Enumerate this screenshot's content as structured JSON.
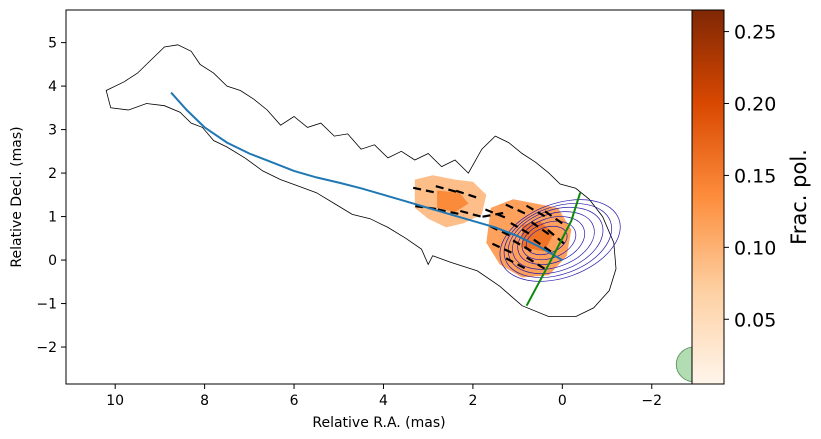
{
  "chart_data": {
    "type": "contour-map",
    "xlabel": "Relative R.A. (mas)",
    "ylabel": "Relative Decl. (mas)",
    "xlim": [
      11.1,
      -2.9
    ],
    "ylim": [
      -2.85,
      5.75
    ],
    "x_ticks": [
      10,
      8,
      6,
      4,
      2,
      0,
      -2
    ],
    "x_tick_labels": [
      "10",
      "8",
      "6",
      "4",
      "2",
      "0",
      "−2"
    ],
    "y_ticks": [
      5,
      4,
      3,
      2,
      1,
      0,
      -1,
      -2
    ],
    "y_tick_labels": [
      "5",
      "4",
      "3",
      "2",
      "1",
      "0",
      "−1",
      "−2"
    ],
    "colorbar": {
      "label": "Frac. pol.",
      "range": [
        0.005,
        0.265
      ],
      "ticks": [
        0.25,
        0.2,
        0.15,
        0.1,
        0.05
      ],
      "tick_labels": [
        "0.25",
        "0.20",
        "0.15",
        "0.10",
        "0.05"
      ],
      "colormap": [
        "#fff5eb",
        "#fdd0a2",
        "#fd8d3c",
        "#d94801",
        "#7f2704"
      ]
    },
    "outer_contour": [
      [
        10.1,
        3.5
      ],
      [
        10.2,
        3.9
      ],
      [
        9.8,
        4.1
      ],
      [
        9.5,
        4.3
      ],
      [
        9.2,
        4.6
      ],
      [
        8.9,
        4.9
      ],
      [
        8.6,
        4.95
      ],
      [
        8.3,
        4.8
      ],
      [
        8.1,
        4.5
      ],
      [
        7.8,
        4.3
      ],
      [
        7.5,
        4.0
      ],
      [
        7.2,
        3.9
      ],
      [
        6.9,
        3.7
      ],
      [
        6.6,
        3.45
      ],
      [
        6.3,
        3.1
      ],
      [
        6.0,
        3.3
      ],
      [
        5.7,
        3.05
      ],
      [
        5.4,
        3.15
      ],
      [
        5.1,
        2.85
      ],
      [
        4.8,
        2.9
      ],
      [
        4.5,
        2.55
      ],
      [
        4.2,
        2.65
      ],
      [
        3.9,
        2.35
      ],
      [
        3.6,
        2.5
      ],
      [
        3.3,
        2.3
      ],
      [
        3.0,
        2.45
      ],
      [
        2.7,
        2.15
      ],
      [
        2.4,
        2.3
      ],
      [
        2.1,
        2.0
      ],
      [
        1.8,
        2.55
      ],
      [
        1.5,
        2.85
      ],
      [
        1.2,
        2.7
      ],
      [
        0.9,
        2.45
      ],
      [
        0.6,
        2.25
      ],
      [
        0.3,
        2.0
      ],
      [
        0.05,
        1.75
      ],
      [
        -0.3,
        1.65
      ],
      [
        -0.6,
        1.4
      ],
      [
        -0.9,
        1.0
      ],
      [
        -1.15,
        0.4
      ],
      [
        -1.2,
        -0.2
      ],
      [
        -1.05,
        -0.7
      ],
      [
        -0.7,
        -1.1
      ],
      [
        -0.3,
        -1.3
      ],
      [
        0.3,
        -1.3
      ],
      [
        0.9,
        -1.05
      ],
      [
        1.4,
        -0.6
      ],
      [
        1.9,
        -0.25
      ],
      [
        2.5,
        -0.05
      ],
      [
        2.9,
        0.1
      ],
      [
        3.0,
        -0.1
      ],
      [
        3.15,
        0.25
      ],
      [
        3.5,
        0.5
      ],
      [
        3.9,
        0.75
      ],
      [
        4.3,
        0.95
      ],
      [
        4.7,
        1.05
      ],
      [
        5.1,
        1.3
      ],
      [
        5.5,
        1.55
      ],
      [
        5.9,
        1.7
      ],
      [
        6.3,
        1.85
      ],
      [
        6.7,
        2.05
      ],
      [
        7.1,
        2.35
      ],
      [
        7.5,
        2.6
      ],
      [
        7.8,
        2.75
      ],
      [
        8.05,
        3.05
      ],
      [
        8.3,
        3.15
      ],
      [
        8.55,
        3.4
      ],
      [
        8.9,
        3.55
      ],
      [
        9.3,
        3.6
      ],
      [
        9.7,
        3.45
      ],
      [
        10.1,
        3.5
      ]
    ],
    "core_contour_levels": [
      {
        "cx": 0.35,
        "cy": 0.45,
        "rx": 0.95,
        "ry": 0.6
      },
      {
        "cx": 0.3,
        "cy": 0.45,
        "rx": 1.25,
        "ry": 0.82
      },
      {
        "cx": 0.25,
        "cy": 0.45,
        "rx": 1.55,
        "ry": 1.02
      },
      {
        "cx": 0.2,
        "cy": 0.45,
        "rx": 1.9,
        "ry": 1.22
      },
      {
        "cx": 0.15,
        "cy": 0.45,
        "rx": 2.2,
        "ry": 1.4
      },
      {
        "cx": 0.1,
        "cy": 0.45,
        "rx": 2.5,
        "ry": 1.55
      },
      {
        "cx": 0.05,
        "cy": 0.45,
        "rx": 2.8,
        "ry": 1.7
      }
    ],
    "frac_pol_regions": [
      {
        "points": [
          [
            3.3,
            1.85
          ],
          [
            2.9,
            1.95
          ],
          [
            2.4,
            1.85
          ],
          [
            2.0,
            1.8
          ],
          [
            1.7,
            1.5
          ],
          [
            1.8,
            1.05
          ],
          [
            2.2,
            0.85
          ],
          [
            2.6,
            0.75
          ],
          [
            3.0,
            0.95
          ],
          [
            3.3,
            1.2
          ]
        ],
        "value": 0.09
      },
      {
        "points": [
          [
            1.6,
            1.2
          ],
          [
            1.1,
            1.4
          ],
          [
            0.6,
            1.3
          ],
          [
            0.1,
            1.2
          ],
          [
            -0.2,
            0.7
          ],
          [
            -0.1,
            0.1
          ],
          [
            0.3,
            -0.35
          ],
          [
            0.9,
            -0.4
          ],
          [
            1.4,
            -0.1
          ],
          [
            1.7,
            0.4
          ]
        ],
        "value": 0.12
      },
      {
        "points": [
          [
            2.8,
            1.6
          ],
          [
            2.3,
            1.55
          ],
          [
            2.1,
            1.3
          ],
          [
            2.4,
            1.1
          ],
          [
            2.8,
            1.2
          ]
        ],
        "value": 0.14
      },
      {
        "points": [
          [
            0.9,
            0.8
          ],
          [
            0.5,
            0.9
          ],
          [
            0.2,
            0.6
          ],
          [
            0.4,
            0.2
          ],
          [
            0.9,
            0.3
          ]
        ],
        "value": 0.16
      }
    ],
    "evpa_vectors": [
      {
        "x": 3.05,
        "y": 1.6,
        "angle_deg": -12
      },
      {
        "x": 2.55,
        "y": 1.62,
        "angle_deg": -15
      },
      {
        "x": 2.1,
        "y": 1.5,
        "angle_deg": -18
      },
      {
        "x": 3.0,
        "y": 1.2,
        "angle_deg": -8
      },
      {
        "x": 2.5,
        "y": 1.1,
        "angle_deg": -12
      },
      {
        "x": 2.0,
        "y": 1.05,
        "angle_deg": -15
      },
      {
        "x": 1.45,
        "y": 1.05,
        "angle_deg": -22
      },
      {
        "x": 1.0,
        "y": 1.15,
        "angle_deg": -25
      },
      {
        "x": 0.55,
        "y": 1.1,
        "angle_deg": -30
      },
      {
        "x": 0.15,
        "y": 0.95,
        "angle_deg": -35
      },
      {
        "x": 1.35,
        "y": 0.65,
        "angle_deg": -25
      },
      {
        "x": 0.9,
        "y": 0.7,
        "angle_deg": -30
      },
      {
        "x": 0.45,
        "y": 0.7,
        "angle_deg": -35
      },
      {
        "x": 1.3,
        "y": 0.25,
        "angle_deg": -25
      },
      {
        "x": 0.85,
        "y": 0.3,
        "angle_deg": -30
      },
      {
        "x": 0.4,
        "y": 0.3,
        "angle_deg": -35
      },
      {
        "x": 1.0,
        "y": -0.1,
        "angle_deg": -28
      },
      {
        "x": 0.55,
        "y": -0.1,
        "angle_deg": -32
      },
      {
        "x": 0.1,
        "y": 0.5,
        "angle_deg": -40
      },
      {
        "x": 1.5,
        "y": 1.05,
        "angle_deg": 10
      }
    ],
    "jet_ridge_line": [
      [
        8.75,
        3.85
      ],
      [
        8.4,
        3.45
      ],
      [
        8.0,
        3.05
      ],
      [
        7.5,
        2.7
      ],
      [
        7.0,
        2.45
      ],
      [
        6.5,
        2.25
      ],
      [
        6.0,
        2.05
      ],
      [
        5.5,
        1.9
      ],
      [
        5.0,
        1.78
      ],
      [
        4.5,
        1.65
      ],
      [
        4.0,
        1.5
      ],
      [
        3.5,
        1.35
      ],
      [
        3.0,
        1.2
      ],
      [
        2.5,
        1.05
      ],
      [
        2.0,
        0.9
      ],
      [
        1.5,
        0.75
      ],
      [
        1.0,
        0.55
      ],
      [
        0.5,
        0.3
      ],
      [
        0.0,
        0.0
      ]
    ],
    "green_line": [
      [
        0.8,
        -1.05
      ],
      [
        0.2,
        0.1
      ],
      [
        -0.2,
        0.9
      ],
      [
        -0.4,
        1.55
      ]
    ],
    "beam": {
      "x": -2.95,
      "y": -2.4,
      "diameter_x": 0.8,
      "diameter_y": 0.8,
      "color": "#9fd39f"
    },
    "colors": {
      "outer_contour": "#000000",
      "core_contours": "#2a1aa8",
      "evpa": "#000000",
      "ridge_line": "#1f77b4",
      "green_line": "#0a8a0a"
    }
  }
}
